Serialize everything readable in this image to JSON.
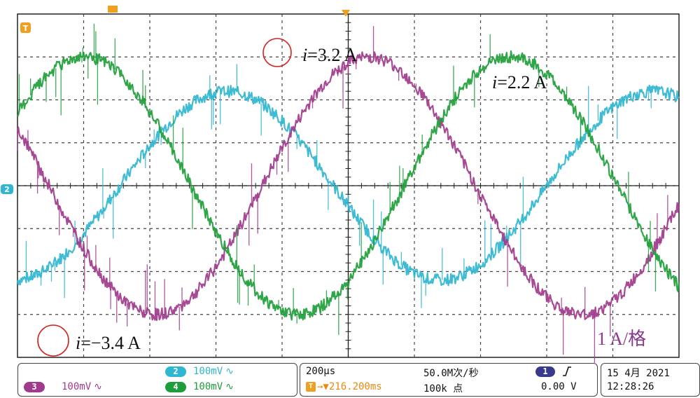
{
  "chart_data": {
    "type": "line",
    "title": "",
    "xlabel": "",
    "ylabel": "",
    "grid": true,
    "x_divisions": 10,
    "y_divisions": 8,
    "units_per_div": 1,
    "ylim": [
      -4,
      4
    ],
    "xlim": [
      0,
      2000
    ],
    "time_per_div": 200,
    "series": [
      {
        "color": "#2fb6d0",
        "amplitude": 2.2,
        "period": 1290,
        "phase": 310,
        "x": [
          0,
          500,
          1000,
          1500,
          2000
        ]
      },
      {
        "color": "#a03a8c",
        "amplitude": 3.0,
        "period": 1290,
        "phase": 740,
        "x": [
          0,
          500,
          1000,
          1500,
          2000
        ]
      },
      {
        "color": "#1e9e3a",
        "amplitude": 3.0,
        "period": 1290,
        "phase": 1170,
        "x": [
          0,
          500,
          1000,
          1500,
          2000
        ]
      }
    ],
    "annotations": [
      {
        "text_italic": "i",
        "text_rest": "=3.2 A",
        "circle": true
      },
      {
        "text_italic": "i",
        "text_rest": "=2.2 A",
        "circle": false
      },
      {
        "text_italic": "i",
        "text_rest": "=−3.4 A",
        "circle": true
      }
    ],
    "scale_label": "1 A/格"
  },
  "markers": {
    "trigger": "T",
    "channel2": "2",
    "top_marker": "▼"
  },
  "status": {
    "ch2": {
      "num": "2",
      "scale": "100mV",
      "coupling": "∿",
      "color": "#2fb6d0"
    },
    "ch3": {
      "num": "3",
      "scale": "100mV",
      "coupling": "∿",
      "color": "#a03a8c"
    },
    "ch4": {
      "num": "4",
      "scale": "100mV",
      "coupling": "∿",
      "color": "#1e9e3a"
    },
    "timebase": "200µs",
    "sample_rate": "50.0M次/秒",
    "trigger_pos": "216.200ms",
    "points": "100k 点",
    "trig_ch": "1",
    "trig_level": "0.00 V",
    "date": "15 4月  2021",
    "time": "12:28:26"
  }
}
